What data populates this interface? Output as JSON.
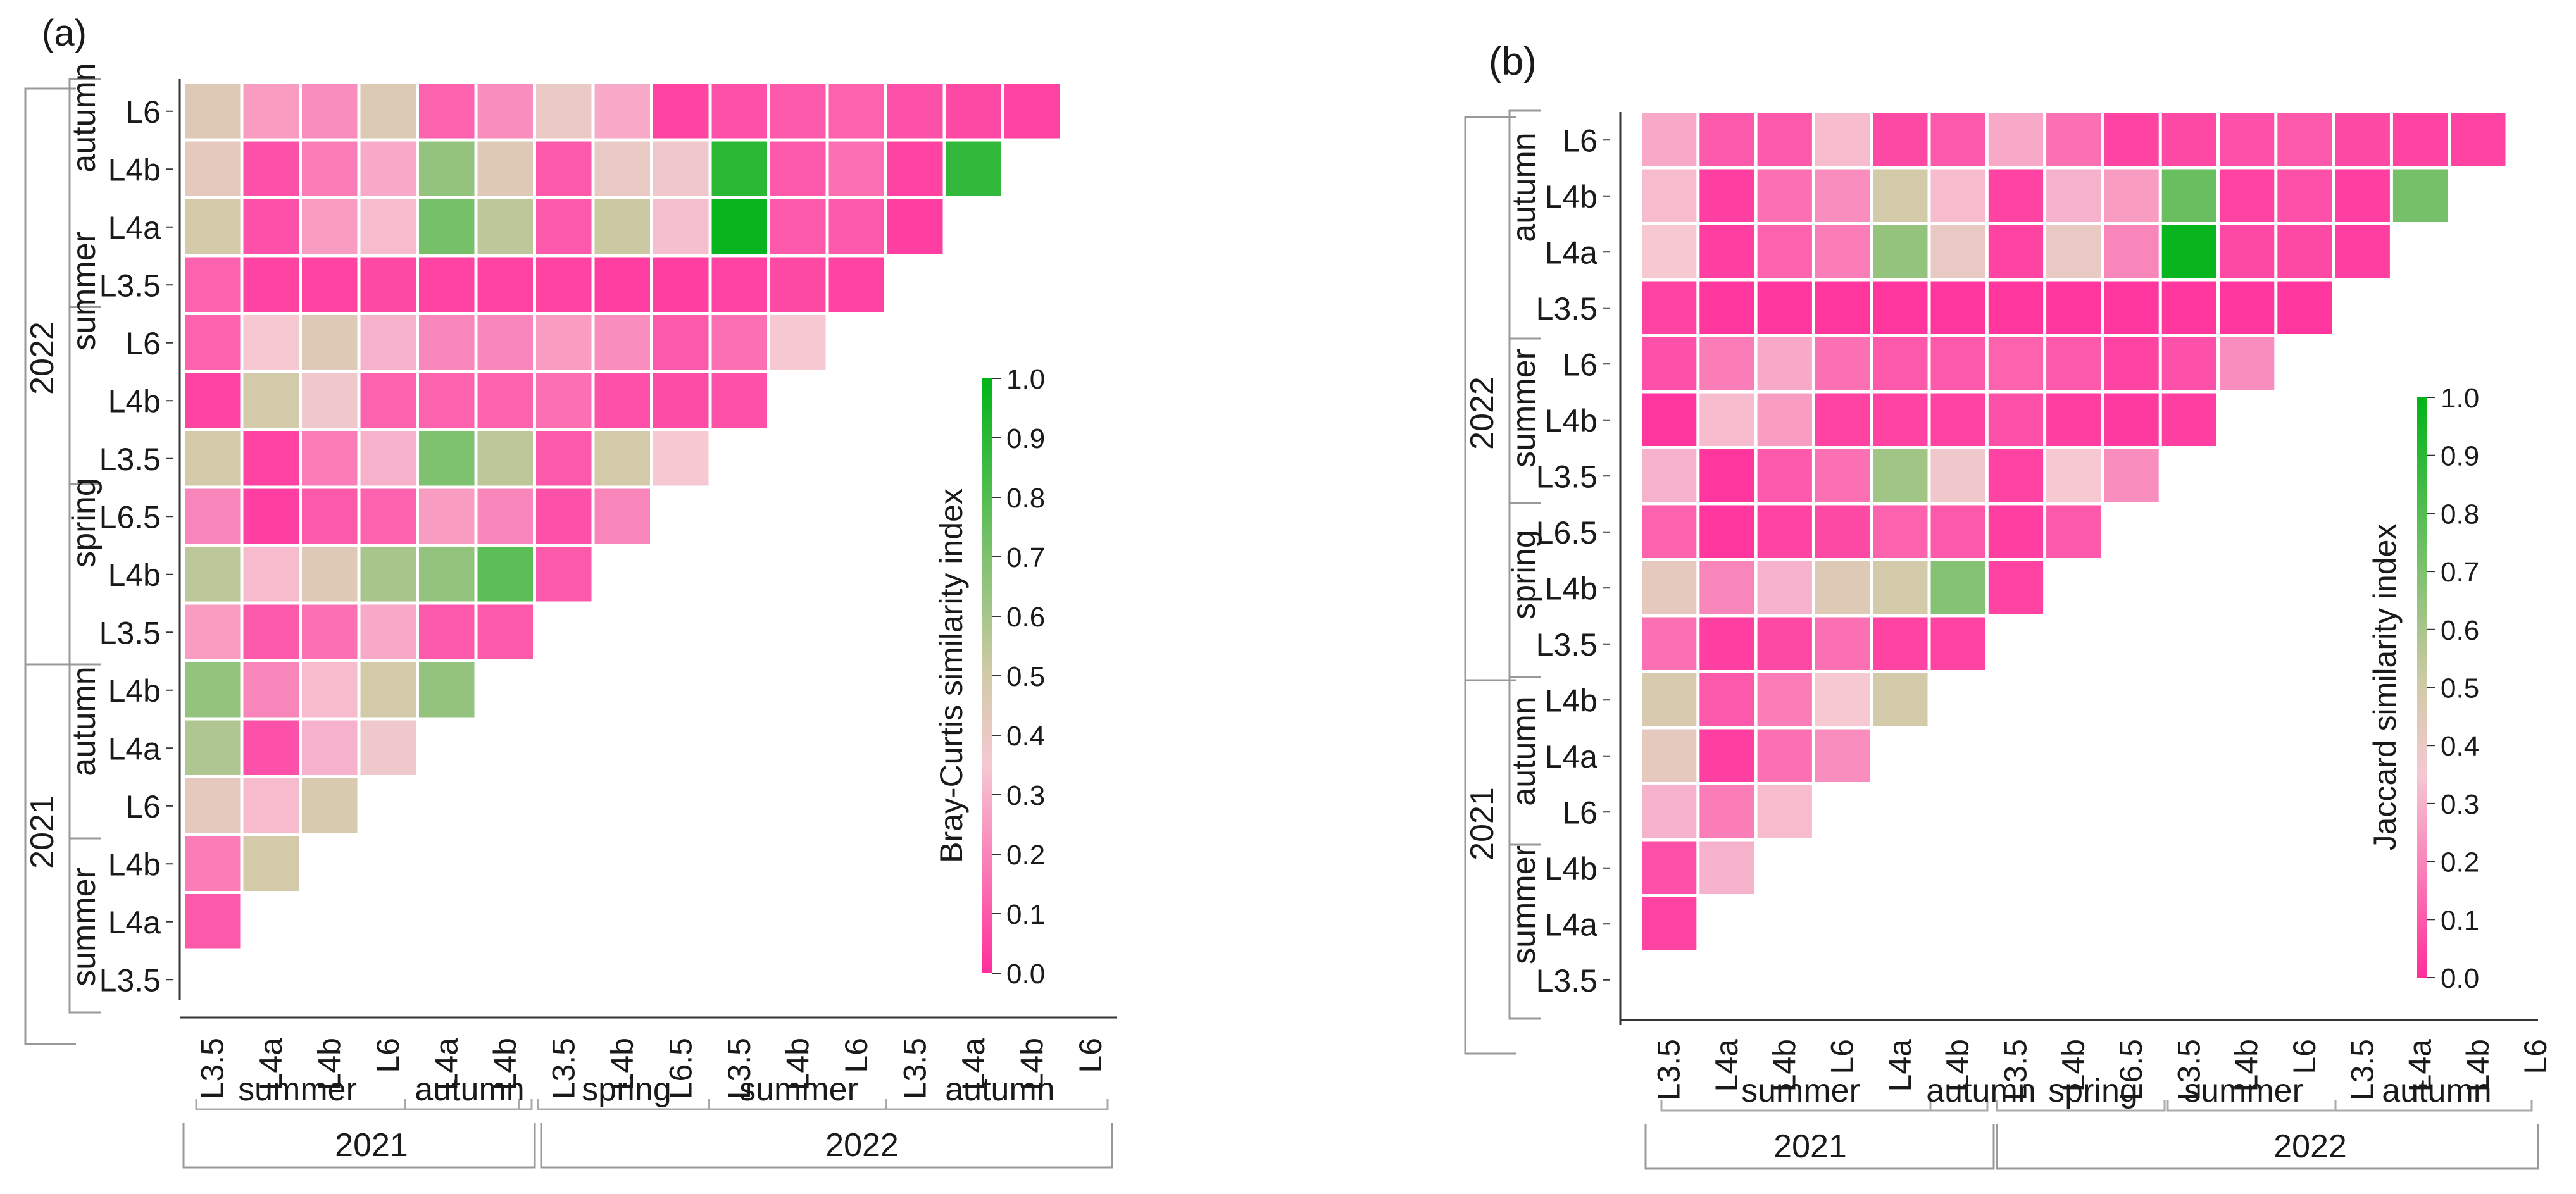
{
  "panels": [
    {
      "id": "a",
      "label": "(a)",
      "colorbar_title": "Bray-Curtis similarity index",
      "colorbar_ticks": [
        "0.0",
        "0.1",
        "0.2",
        "0.3",
        "0.4",
        "0.5",
        "0.6",
        "0.7",
        "0.8",
        "0.9",
        "1.0"
      ],
      "x_sites": [
        "L3.5",
        "L4a",
        "L4b",
        "L6",
        "L4a",
        "L4b",
        "L3.5",
        "L4b",
        "L6.5",
        "L3.5",
        "L4b",
        "L6",
        "L3.5",
        "L4a",
        "L4b",
        "L6"
      ],
      "y_sites": [
        "L6",
        "L4b",
        "L4a",
        "L3.5",
        "L6",
        "L4b",
        "L3.5",
        "L6.5",
        "L4b",
        "L3.5",
        "L4b",
        "L4a",
        "L6",
        "L4b",
        "L4a",
        "L3.5"
      ],
      "x_seasons": [
        "summer",
        "autumn",
        "spring",
        "summer",
        "autumn"
      ],
      "x_years": [
        "2021",
        "2022"
      ],
      "y_seasons": [
        "autumn",
        "summer",
        "spring",
        "autumn",
        "summer"
      ],
      "y_years": [
        "2022",
        "2021"
      ]
    },
    {
      "id": "b",
      "label": "(b)",
      "colorbar_title": "Jaccard similarity index",
      "colorbar_ticks": [
        "0.0",
        "0.1",
        "0.2",
        "0.3",
        "0.4",
        "0.5",
        "0.6",
        "0.7",
        "0.8",
        "0.9",
        "1.0"
      ],
      "x_sites": [
        "L3.5",
        "L4a",
        "L4b",
        "L6",
        "L4a",
        "L4b",
        "L3.5",
        "L4b",
        "L6.5",
        "L3.5",
        "L4b",
        "L6",
        "L3.5",
        "L4a",
        "L4b",
        "L6"
      ],
      "y_sites": [
        "L6",
        "L4b",
        "L4a",
        "L3.5",
        "L6",
        "L4b",
        "L3.5",
        "L6.5",
        "L4b",
        "L3.5",
        "L4b",
        "L4a",
        "L6",
        "L4b",
        "L4a",
        "L3.5"
      ],
      "x_seasons": [
        "summer",
        "autumn",
        "spring",
        "summer",
        "autumn"
      ],
      "x_years": [
        "2021",
        "2022"
      ],
      "y_seasons": [
        "autumn",
        "summer",
        "spring",
        "autumn",
        "summer"
      ],
      "y_years": [
        "2022",
        "2021"
      ]
    }
  ],
  "chart_data": [
    {
      "type": "heatmap",
      "title": "(a)",
      "colorbar_label": "Bray-Curtis similarity index",
      "vmin": 0.0,
      "vmax": 1.0,
      "colorscale": [
        "#ff2d9b",
        "#f5c8d2",
        "#d2caa8",
        "#00b418"
      ],
      "note": "Lower-triangular matrix; rows listed top to bottom (2022 autumn L6 ... 2021 summer L3.5); each row lists values for x columns in order, row i has 15-i cells.",
      "values": [
        [
          0.45,
          0.25,
          0.22,
          0.46,
          0.12,
          0.22,
          0.4,
          0.28,
          0.05,
          0.08,
          0.1,
          0.12,
          0.08,
          0.06,
          0.05
        ],
        [
          0.42,
          0.08,
          0.18,
          0.28,
          0.65,
          0.45,
          0.1,
          0.4,
          0.38,
          0.9,
          0.1,
          0.15,
          0.05,
          0.88
        ],
        [
          0.5,
          0.08,
          0.25,
          0.32,
          0.72,
          0.55,
          0.1,
          0.52,
          0.33,
          0.98,
          0.1,
          0.1,
          0.04
        ],
        [
          0.12,
          0.05,
          0.05,
          0.06,
          0.05,
          0.05,
          0.05,
          0.04,
          0.04,
          0.05,
          0.06,
          0.05
        ],
        [
          0.12,
          0.35,
          0.45,
          0.3,
          0.2,
          0.2,
          0.25,
          0.22,
          0.1,
          0.15,
          0.35
        ],
        [
          0.05,
          0.5,
          0.38,
          0.12,
          0.12,
          0.12,
          0.15,
          0.08,
          0.07,
          0.08
        ],
        [
          0.5,
          0.05,
          0.18,
          0.3,
          0.7,
          0.55,
          0.1,
          0.5,
          0.35
        ],
        [
          0.2,
          0.04,
          0.1,
          0.12,
          0.25,
          0.2,
          0.08,
          0.2
        ],
        [
          0.55,
          0.32,
          0.45,
          0.6,
          0.65,
          0.78,
          0.1
        ],
        [
          0.25,
          0.1,
          0.15,
          0.28,
          0.1,
          0.1
        ],
        [
          0.65,
          0.2,
          0.32,
          0.5,
          0.65
        ],
        [
          0.58,
          0.08,
          0.3,
          0.38
        ],
        [
          0.42,
          0.32,
          0.48
        ],
        [
          0.18,
          0.5
        ],
        [
          0.1
        ],
        []
      ]
    },
    {
      "type": "heatmap",
      "title": "(b)",
      "colorbar_label": "Jaccard similarity index",
      "vmin": 0.0,
      "vmax": 1.0,
      "colorscale": [
        "#ff2d9b",
        "#f5c8d2",
        "#d2caa8",
        "#00b418"
      ],
      "note": "Lower-triangular matrix; same row/column ordering as panel (a).",
      "values": [
        [
          0.28,
          0.1,
          0.1,
          0.32,
          0.06,
          0.1,
          0.28,
          0.15,
          0.05,
          0.06,
          0.08,
          0.1,
          0.06,
          0.05,
          0.05
        ],
        [
          0.32,
          0.04,
          0.15,
          0.22,
          0.5,
          0.32,
          0.05,
          0.3,
          0.25,
          0.75,
          0.05,
          0.08,
          0.04,
          0.72
        ],
        [
          0.35,
          0.04,
          0.12,
          0.18,
          0.65,
          0.4,
          0.05,
          0.4,
          0.2,
          0.98,
          0.06,
          0.06,
          0.04
        ],
        [
          0.05,
          0.02,
          0.02,
          0.02,
          0.02,
          0.02,
          0.02,
          0.02,
          0.02,
          0.02,
          0.02,
          0.02
        ],
        [
          0.08,
          0.18,
          0.28,
          0.15,
          0.1,
          0.1,
          0.12,
          0.1,
          0.05,
          0.08,
          0.22
        ],
        [
          0.02,
          0.32,
          0.25,
          0.05,
          0.05,
          0.05,
          0.08,
          0.04,
          0.03,
          0.04
        ],
        [
          0.3,
          0.02,
          0.1,
          0.15,
          0.62,
          0.38,
          0.05,
          0.35,
          0.22
        ],
        [
          0.12,
          0.02,
          0.05,
          0.06,
          0.12,
          0.1,
          0.04,
          0.1
        ],
        [
          0.42,
          0.2,
          0.3,
          0.45,
          0.5,
          0.68,
          0.05
        ],
        [
          0.15,
          0.04,
          0.06,
          0.15,
          0.05,
          0.05
        ],
        [
          0.48,
          0.1,
          0.18,
          0.35,
          0.5
        ],
        [
          0.42,
          0.04,
          0.15,
          0.22
        ],
        [
          0.3,
          0.18,
          0.32
        ],
        [
          0.08,
          0.3
        ],
        [
          0.05
        ],
        []
      ]
    }
  ]
}
